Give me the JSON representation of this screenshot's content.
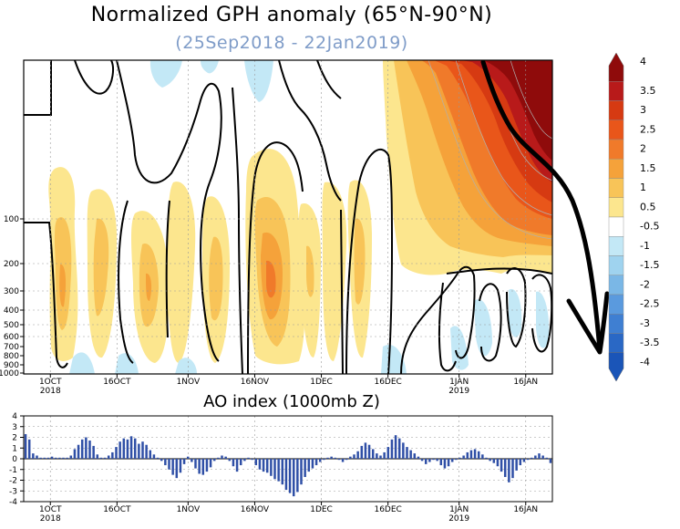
{
  "top_chart": {
    "title": "Normalized GPH anomaly (65°N-90°N)",
    "subtitle": "(25Sep2018 - 22Jan2019)",
    "y_ticks": [
      "100",
      "200",
      "300",
      "400",
      "500",
      "600",
      "700",
      "800",
      "900",
      "1000"
    ],
    "x_ticks": [
      {
        "label": "1OCT",
        "sub": "2018"
      },
      {
        "label": "16OCT",
        "sub": ""
      },
      {
        "label": "1NOV",
        "sub": ""
      },
      {
        "label": "16NOV",
        "sub": ""
      },
      {
        "label": "1DEC",
        "sub": ""
      },
      {
        "label": "16DEC",
        "sub": ""
      },
      {
        "label": "1JAN",
        "sub": "2019"
      },
      {
        "label": "16JAN",
        "sub": ""
      }
    ]
  },
  "colorbar": {
    "labels": [
      "4",
      "3.5",
      "3",
      "2.5",
      "2",
      "1.5",
      "1",
      "0.5",
      "-0.5",
      "-1",
      "-1.5",
      "-2",
      "-2.5",
      "-3",
      "-3.5",
      "-4"
    ],
    "colors": [
      "#8f0b0b",
      "#b81a1a",
      "#d63a12",
      "#e9561a",
      "#f07a2a",
      "#f5a23a",
      "#f8c458",
      "#fce68e",
      "#ffffff",
      "#c3e8f6",
      "#9fd3ef",
      "#7ab7e6",
      "#5a9ade",
      "#3f7fd2",
      "#2a68c5",
      "#1a55b8"
    ]
  },
  "chart_data": [
    {
      "type": "heatmap",
      "title": "Normalized GPH anomaly (65°N-90°N)",
      "subtitle": "(25Sep2018 - 22Jan2019)",
      "xlabel": "",
      "ylabel": "",
      "x_range": [
        "25Sep2018",
        "22Jan2019"
      ],
      "y_ticks": [
        100,
        200,
        300,
        400,
        500,
        600,
        700,
        800,
        900,
        1000
      ],
      "color_range": [
        -4,
        4
      ],
      "colorbar_levels": [
        4,
        3.5,
        3,
        2.5,
        2,
        1.5,
        1,
        0.5,
        -0.5,
        -1,
        -1.5,
        -2,
        -2.5,
        -3,
        -3.5,
        -4
      ]
    },
    {
      "type": "bar",
      "title": "AO index (1000mb Z)",
      "xlabel": "",
      "ylabel": "",
      "ylim": [
        -4,
        4
      ],
      "y_ticks": [
        4,
        3,
        2,
        1,
        0,
        -1,
        -2,
        -3,
        -4
      ],
      "x_ticks": [
        "1OCT",
        "16OCT",
        "1NOV",
        "16NOV",
        "1DEC",
        "16DEC",
        "1JAN",
        "16JAN"
      ],
      "x_start": "25Sep2018",
      "values": [
        2.3,
        1.8,
        0.5,
        0.3,
        0.1,
        0.1,
        0.1,
        0.2,
        0.1,
        0.1,
        0.1,
        0.1,
        0.3,
        0.9,
        1.3,
        1.8,
        2.0,
        1.7,
        1.2,
        0.4,
        0.1,
        0.1,
        0.3,
        0.6,
        1.1,
        1.6,
        1.9,
        1.8,
        2.1,
        1.9,
        1.4,
        1.6,
        1.3,
        0.8,
        0.4,
        0.1,
        -0.2,
        -0.6,
        -1.0,
        -1.5,
        -1.8,
        -1.3,
        -0.5,
        0.2,
        -0.3,
        -0.9,
        -1.4,
        -1.5,
        -1.2,
        -0.8,
        -0.2,
        0.1,
        0.3,
        0.2,
        -0.2,
        -0.7,
        -1.2,
        -0.6,
        -0.2,
        0.1,
        -0.1,
        -0.6,
        -1.0,
        -1.2,
        -1.3,
        -1.6,
        -1.9,
        -2.1,
        -2.4,
        -2.9,
        -3.2,
        -3.5,
        -3.1,
        -2.4,
        -1.7,
        -1.2,
        -0.9,
        -0.6,
        -0.3,
        -0.1,
        0.1,
        0.2,
        0.1,
        -0.1,
        -0.3,
        -0.1,
        0.2,
        0.4,
        0.7,
        1.2,
        1.5,
        1.3,
        0.9,
        0.5,
        0.3,
        0.6,
        1.1,
        1.8,
        2.2,
        1.9,
        1.5,
        1.1,
        0.8,
        0.5,
        0.2,
        -0.2,
        -0.5,
        -0.3,
        -0.1,
        -0.2,
        -0.6,
        -0.9,
        -0.7,
        -0.3,
        -0.1,
        0.1,
        0.3,
        0.6,
        0.8,
        0.9,
        0.7,
        0.4,
        0.1,
        -0.2,
        -0.4,
        -0.7,
        -1.2,
        -1.7,
        -2.2,
        -1.8,
        -1.1,
        -0.6,
        -0.3,
        -0.1,
        0.1,
        0.3,
        0.5,
        0.3,
        0.1,
        -0.4
      ]
    }
  ],
  "ao_chart": {
    "title": "AO index (1000mb Z)",
    "y_ticks": [
      "4",
      "3",
      "2",
      "1",
      "0",
      "-1",
      "-2",
      "-3",
      "-4"
    ],
    "x_ticks": [
      {
        "label": "1OCT",
        "sub": "2018"
      },
      {
        "label": "16OCT",
        "sub": ""
      },
      {
        "label": "1NOV",
        "sub": ""
      },
      {
        "label": "16NOV",
        "sub": ""
      },
      {
        "label": "1DEC",
        "sub": ""
      },
      {
        "label": "16DEC",
        "sub": ""
      },
      {
        "label": "1JAN",
        "sub": "2019"
      },
      {
        "label": "16JAN",
        "sub": ""
      }
    ]
  }
}
